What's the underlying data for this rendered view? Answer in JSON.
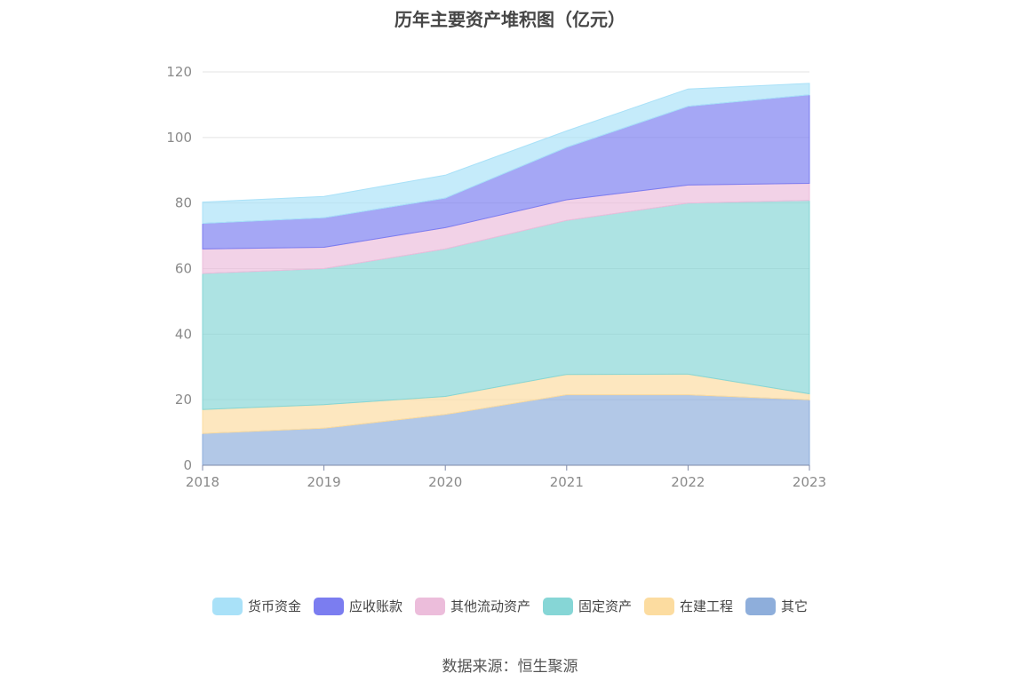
{
  "chart_data": {
    "type": "area",
    "stacked": true,
    "title": "历年主要资产堆积图（亿元）",
    "x": [
      "2018",
      "2019",
      "2020",
      "2021",
      "2022",
      "2023"
    ],
    "ylim": [
      0,
      120
    ],
    "yticks": [
      0,
      20,
      40,
      60,
      80,
      100,
      120
    ],
    "grid": true,
    "legend_position": "bottom",
    "series": [
      {
        "name": "其它",
        "color": "#8eaedb",
        "values": [
          9.7,
          11.3,
          15.5,
          21.5,
          21.5,
          20.0
        ]
      },
      {
        "name": "在建工程",
        "color": "#fcdca0",
        "values": [
          7.3,
          7.2,
          5.5,
          6.2,
          6.3,
          1.8
        ]
      },
      {
        "name": "固定资产",
        "color": "#86d6d6",
        "values": [
          41.5,
          41.5,
          45.0,
          47.0,
          52.2,
          59.0
        ]
      },
      {
        "name": "其他流动资产",
        "color": "#ecbddb",
        "values": [
          7.5,
          6.5,
          6.5,
          6.3,
          5.5,
          5.2
        ]
      },
      {
        "name": "应收账款",
        "color": "#7b7df0",
        "values": [
          7.8,
          9.0,
          9.0,
          16.0,
          24.0,
          27.0
        ]
      },
      {
        "name": "货币资金",
        "color": "#a9e1f8",
        "values": [
          6.5,
          6.5,
          7.0,
          5.0,
          5.3,
          3.5
        ]
      }
    ]
  },
  "legend": [
    {
      "label": "货币资金",
      "color": "#a9e1f8"
    },
    {
      "label": "应收账款",
      "color": "#7b7df0"
    },
    {
      "label": "其他流动资产",
      "color": "#ecbddb"
    },
    {
      "label": "固定资产",
      "color": "#86d6d6"
    },
    {
      "label": "在建工程",
      "color": "#fcdca0"
    },
    {
      "label": "其它",
      "color": "#8eaedb"
    }
  ],
  "source": "数据来源：恒生聚源"
}
